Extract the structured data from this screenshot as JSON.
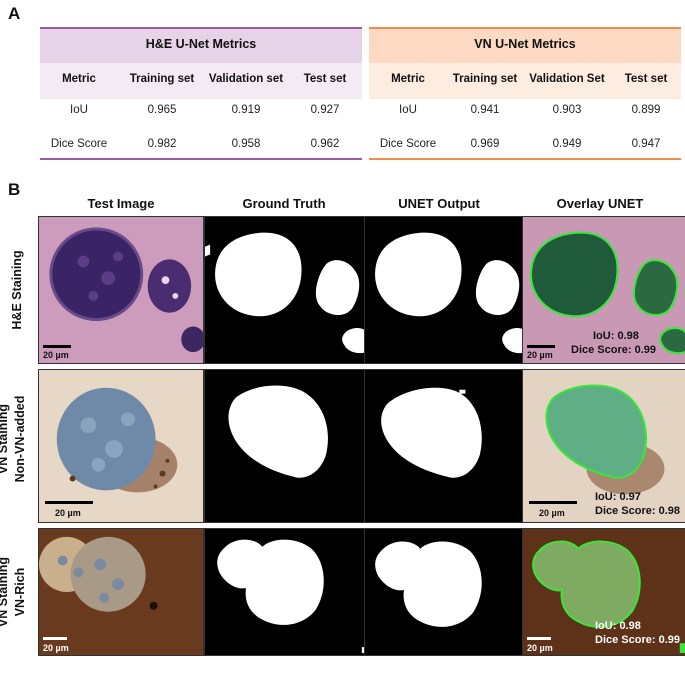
{
  "panel_a": {
    "letter": "A"
  },
  "panel_b": {
    "letter": "B"
  },
  "table_he": {
    "title": "H&E U-Net Metrics",
    "columns": [
      "Metric",
      "Training set",
      "Validation set",
      "Test set"
    ],
    "rows": [
      {
        "metric": "IoU",
        "training": "0.965",
        "validation": "0.919",
        "test": "0.927"
      },
      {
        "metric": "Dice Score",
        "training": "0.982",
        "validation": "0.958",
        "test": "0.962"
      }
    ],
    "accent_color": "#9b5aa3"
  },
  "table_vn": {
    "title": "VN U-Net Metrics",
    "columns": [
      "Metric",
      "Training set",
      "Validation Set",
      "Test set"
    ],
    "rows": [
      {
        "metric": "IoU",
        "training": "0.941",
        "validation": "0.903",
        "test": "0.899"
      },
      {
        "metric": "Dice Score",
        "training": "0.969",
        "validation": "0.949",
        "test": "0.947"
      }
    ],
    "accent_color": "#e98e4e"
  },
  "grid": {
    "column_titles": [
      "Test Image",
      "Ground Truth",
      "UNET Output",
      "Overlay UNET"
    ],
    "rows": [
      {
        "label_line1": "H&E  Staining",
        "label_line2": "",
        "scale_text": "20 µm",
        "iou_text": "IoU: 0.98",
        "dice_text": "Dice Score: 0.99"
      },
      {
        "label_line1": "VN Staining",
        "label_line2": "Non-VN-added",
        "scale_text": "20 µm",
        "iou_text": "IoU: 0.97",
        "dice_text": "Dice Score: 0.98"
      },
      {
        "label_line1": "VN Staining",
        "label_line2": "VN-Rich",
        "scale_text": "20 µm",
        "iou_text": "IoU: 0.98",
        "dice_text": "Dice Score: 0.99"
      }
    ],
    "overlay_color": "#39e639"
  }
}
